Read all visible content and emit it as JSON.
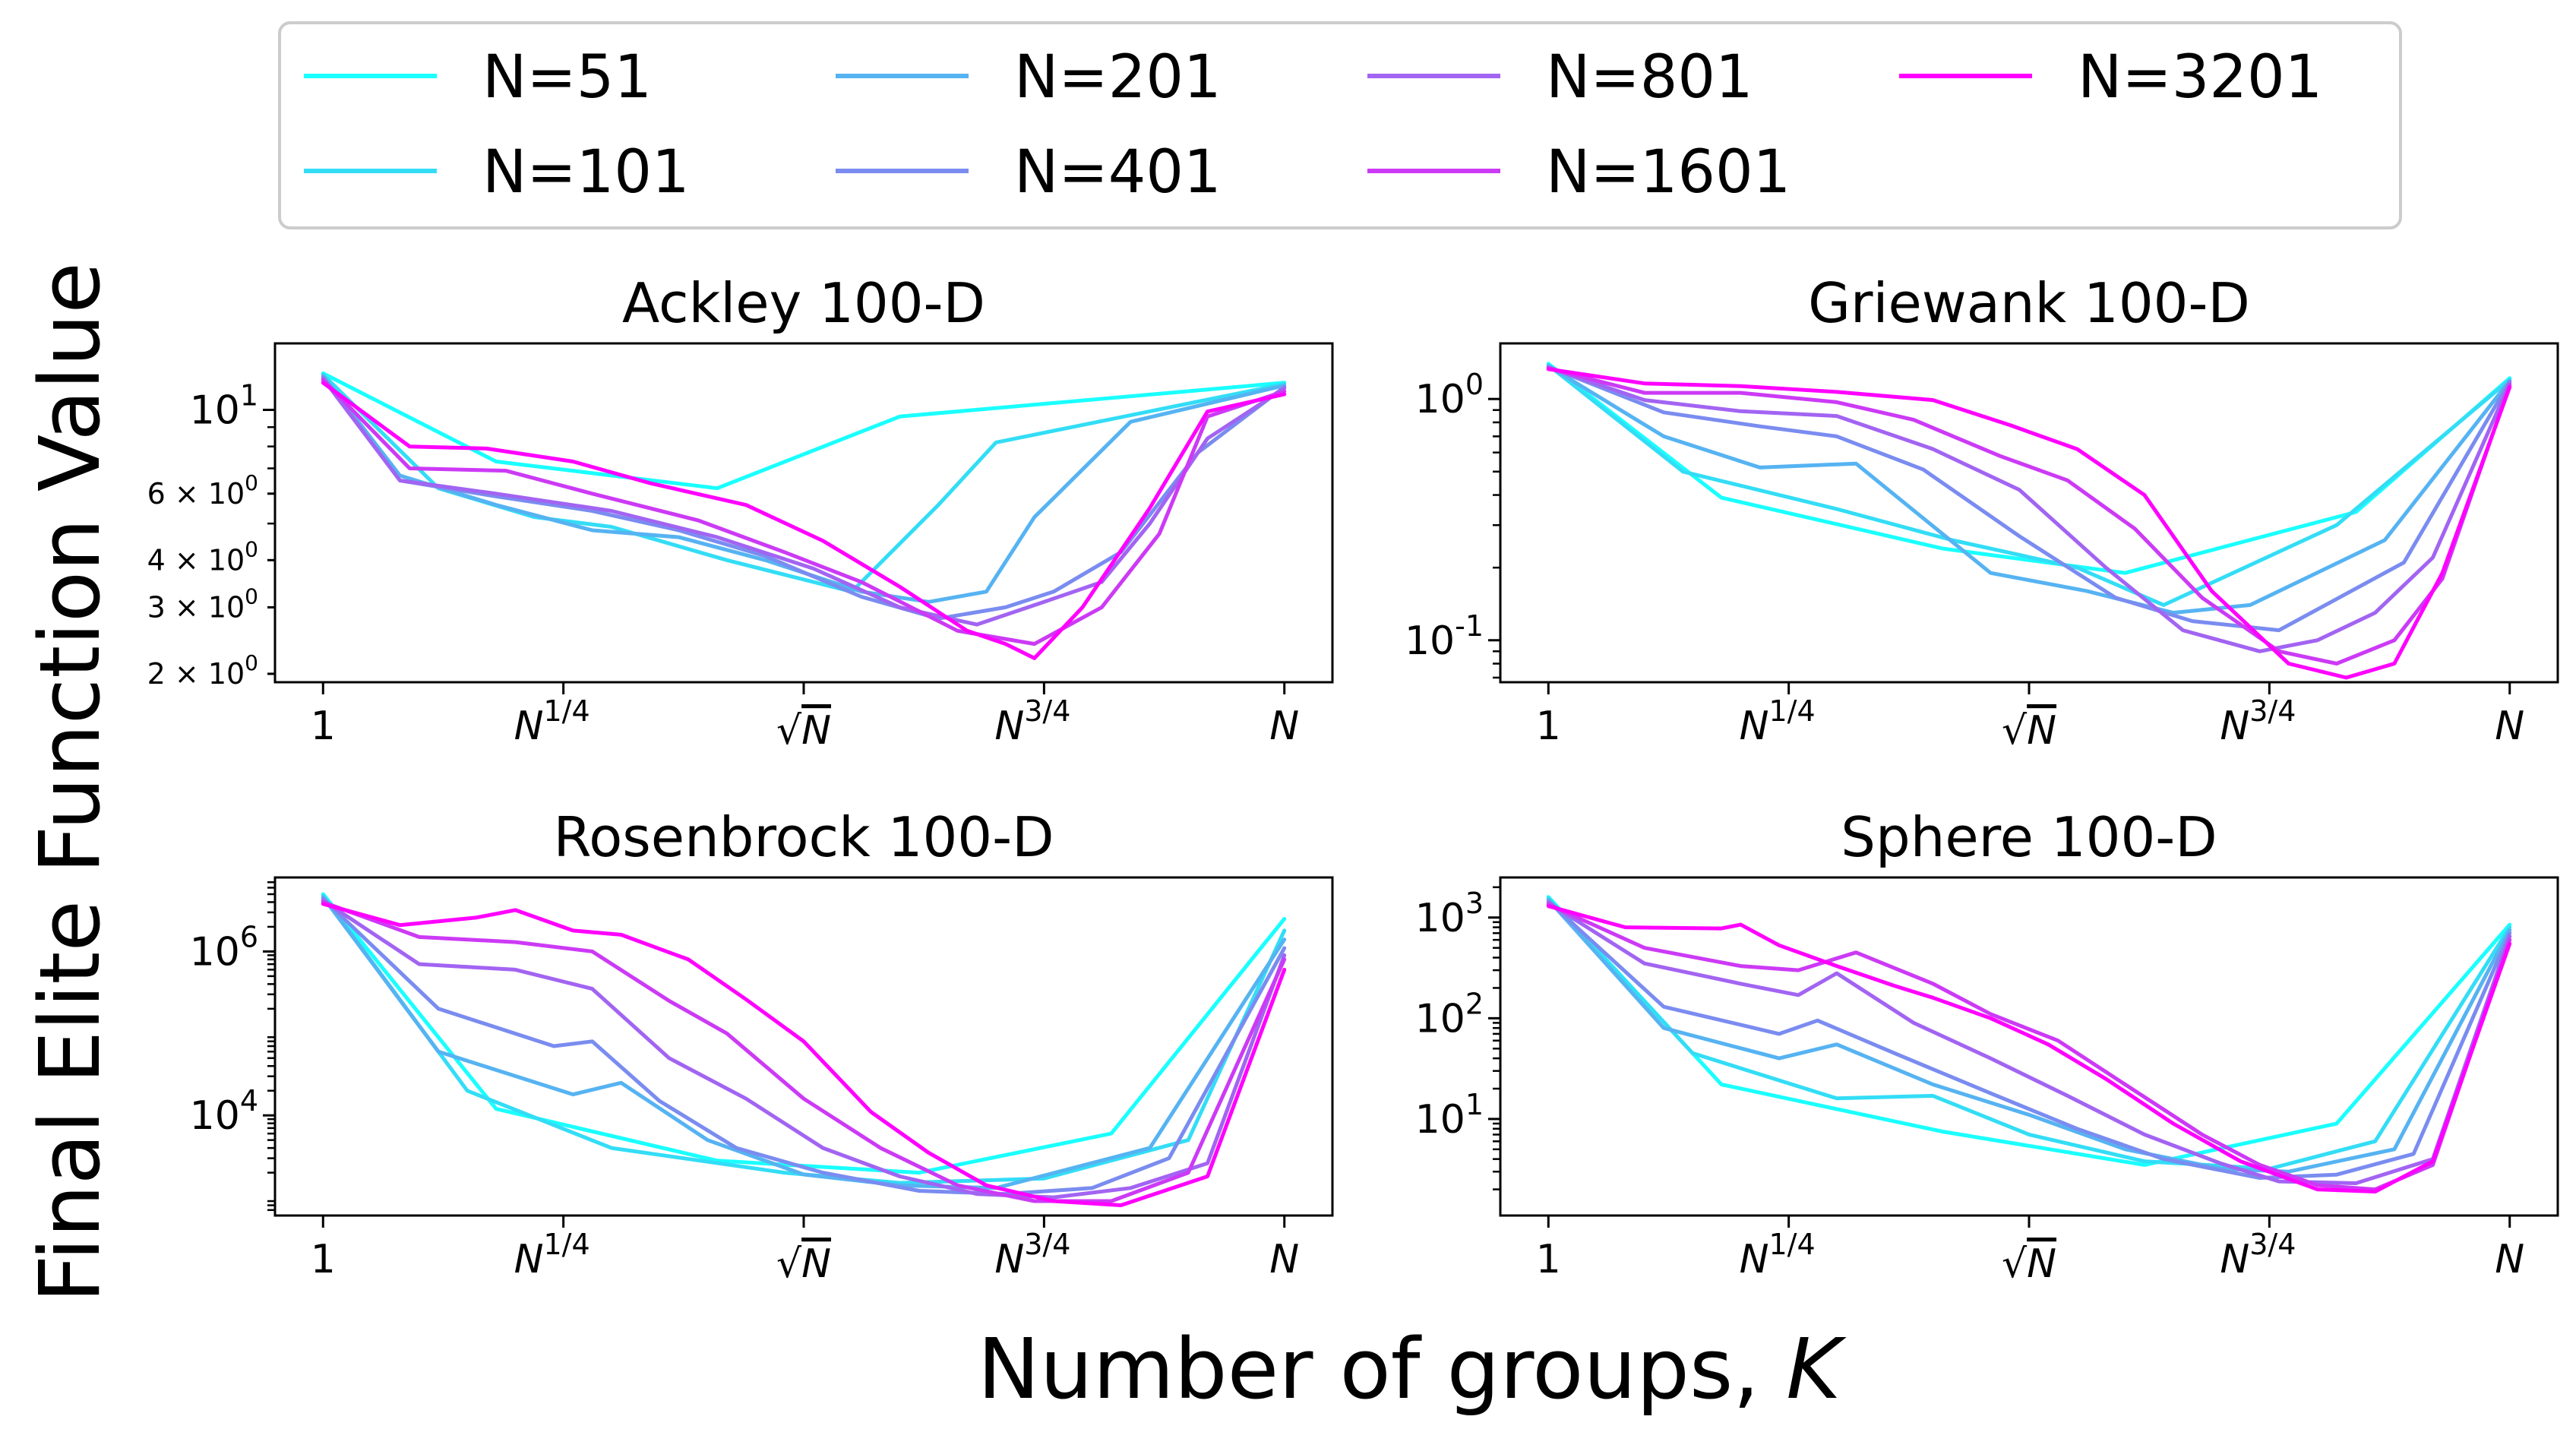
{
  "figure": {
    "ylabel": "Final Elite Function Value",
    "xlabel_prefix": "Number of groups, ",
    "xlabel_var": "K",
    "legend": [
      {
        "name": "N=51",
        "color": "#1affff"
      },
      {
        "name": "N=101",
        "color": "#33ddf6"
      },
      {
        "name": "N=201",
        "color": "#56b3f2"
      },
      {
        "name": "N=401",
        "color": "#7a8cf0"
      },
      {
        "name": "N=801",
        "color": "#a264f2"
      },
      {
        "name": "N=1601",
        "color": "#cc3af5"
      },
      {
        "name": "N=3201",
        "color": "#ff00ff"
      }
    ]
  },
  "chart_data": [
    {
      "type": "line",
      "title": "Ackley 100-D",
      "yscale": "log",
      "ylim": [
        1.9,
        15
      ],
      "xlim": [
        -0.05,
        1.05
      ],
      "x_ticks": [
        {
          "x": 0,
          "label": "1"
        },
        {
          "x": 0.25,
          "label": "N^1/4"
        },
        {
          "x": 0.5,
          "label": "√N"
        },
        {
          "x": 0.75,
          "label": "N^3/4"
        },
        {
          "x": 1,
          "label": "N"
        }
      ],
      "y_ticks": [
        {
          "v": 10,
          "label": "10^1",
          "major": true
        },
        {
          "v": 6,
          "label": "6 × 10^0",
          "major": false
        },
        {
          "v": 4,
          "label": "4 × 10^0",
          "major": false
        },
        {
          "v": 3,
          "label": "3 × 10^0",
          "major": false
        },
        {
          "v": 2,
          "label": "2 × 10^0",
          "major": false
        }
      ],
      "minor_ticks": [
        2,
        3,
        4,
        5,
        6,
        7,
        8,
        9
      ],
      "series": [
        {
          "name": "N=51",
          "x": [
            0,
            0.18,
            0.41,
            0.6,
            1.0
          ],
          "y": [
            12.5,
            7.3,
            6.2,
            9.6,
            11.8
          ]
        },
        {
          "name": "N=101",
          "x": [
            0,
            0.12,
            0.22,
            0.3,
            0.42,
            0.55,
            0.64,
            0.7,
            1.0
          ],
          "y": [
            12.4,
            6.2,
            5.2,
            4.9,
            4.0,
            3.3,
            5.6,
            8.2,
            11.7
          ]
        },
        {
          "name": "N=201",
          "x": [
            0,
            0.08,
            0.18,
            0.28,
            0.37,
            0.46,
            0.56,
            0.63,
            0.69,
            0.74,
            0.84,
            1.0
          ],
          "y": [
            12.3,
            6.7,
            5.6,
            4.8,
            4.6,
            4.0,
            3.3,
            3.1,
            3.3,
            5.2,
            9.3,
            11.6
          ]
        },
        {
          "name": "N=401",
          "x": [
            0,
            0.08,
            0.18,
            0.28,
            0.37,
            0.46,
            0.56,
            0.64,
            0.71,
            0.76,
            0.83,
            0.91,
            1.0
          ],
          "y": [
            12.2,
            6.5,
            5.9,
            5.4,
            4.8,
            4.1,
            3.2,
            2.8,
            3.0,
            3.3,
            4.2,
            7.7,
            11.5
          ]
        },
        {
          "name": "N=801",
          "x": [
            0,
            0.08,
            0.18,
            0.3,
            0.41,
            0.51,
            0.6,
            0.68,
            0.75,
            0.81,
            0.86,
            0.92,
            1.0
          ],
          "y": [
            12.1,
            6.5,
            6.0,
            5.4,
            4.6,
            3.8,
            3.0,
            2.7,
            3.1,
            3.5,
            5.0,
            8.4,
            11.4
          ]
        },
        {
          "name": "N=1601",
          "x": [
            0,
            0.09,
            0.19,
            0.28,
            0.39,
            0.48,
            0.56,
            0.66,
            0.74,
            0.81,
            0.87,
            0.92,
            1.0
          ],
          "y": [
            12.0,
            7.0,
            6.9,
            6.0,
            5.1,
            4.2,
            3.5,
            2.6,
            2.4,
            3.0,
            4.7,
            9.6,
            11.2
          ]
        },
        {
          "name": "N=3201",
          "x": [
            0,
            0.09,
            0.17,
            0.26,
            0.34,
            0.44,
            0.52,
            0.6,
            0.67,
            0.71,
            0.74,
            0.79,
            0.86,
            0.92,
            1.0
          ],
          "y": [
            11.8,
            8.0,
            7.9,
            7.3,
            6.4,
            5.6,
            4.5,
            3.4,
            2.6,
            2.4,
            2.2,
            3.0,
            5.5,
            9.9,
            11.0
          ]
        }
      ]
    },
    {
      "type": "line",
      "title": "Griewank 100-D",
      "yscale": "log",
      "ylim": [
        0.067,
        1.7
      ],
      "xlim": [
        -0.05,
        1.05
      ],
      "x_ticks": [
        {
          "x": 0,
          "label": "1"
        },
        {
          "x": 0.25,
          "label": "N^1/4"
        },
        {
          "x": 0.5,
          "label": "√N"
        },
        {
          "x": 0.75,
          "label": "N^3/4"
        },
        {
          "x": 1,
          "label": "N"
        }
      ],
      "y_ticks": [
        {
          "v": 1,
          "label": "10^0",
          "major": true
        },
        {
          "v": 0.1,
          "label": "10^-1",
          "major": true
        }
      ],
      "minor_ticks": [
        0.07,
        0.08,
        0.09,
        0.2,
        0.3,
        0.4,
        0.5,
        0.6,
        0.7,
        0.8,
        0.9
      ],
      "series": [
        {
          "name": "N=51",
          "x": [
            0,
            0.18,
            0.41,
            0.6,
            0.84,
            1.0
          ],
          "y": [
            1.4,
            0.39,
            0.24,
            0.19,
            0.34,
            1.22
          ]
        },
        {
          "name": "N=101",
          "x": [
            0,
            0.14,
            0.3,
            0.42,
            0.55,
            0.64,
            0.82,
            1.0
          ],
          "y": [
            1.38,
            0.5,
            0.35,
            0.26,
            0.2,
            0.14,
            0.3,
            1.2
          ]
        },
        {
          "name": "N=201",
          "x": [
            0,
            0.12,
            0.22,
            0.32,
            0.46,
            0.56,
            0.65,
            0.73,
            0.87,
            1.0
          ],
          "y": [
            1.37,
            0.7,
            0.52,
            0.54,
            0.19,
            0.16,
            0.13,
            0.14,
            0.26,
            1.19
          ]
        },
        {
          "name": "N=401",
          "x": [
            0,
            0.12,
            0.22,
            0.3,
            0.39,
            0.49,
            0.59,
            0.67,
            0.76,
            0.89,
            1.0
          ],
          "y": [
            1.36,
            0.88,
            0.77,
            0.7,
            0.51,
            0.27,
            0.15,
            0.12,
            0.11,
            0.21,
            1.18
          ]
        },
        {
          "name": "N=801",
          "x": [
            0,
            0.1,
            0.2,
            0.3,
            0.4,
            0.49,
            0.58,
            0.66,
            0.74,
            0.8,
            0.86,
            0.92,
            1.0
          ],
          "y": [
            1.35,
            0.99,
            0.89,
            0.85,
            0.62,
            0.42,
            0.2,
            0.11,
            0.09,
            0.1,
            0.13,
            0.22,
            1.16
          ]
        },
        {
          "name": "N=1601",
          "x": [
            0,
            0.1,
            0.2,
            0.3,
            0.38,
            0.47,
            0.54,
            0.61,
            0.68,
            0.76,
            0.82,
            0.88,
            0.93,
            1.0
          ],
          "y": [
            1.34,
            1.06,
            1.06,
            0.97,
            0.82,
            0.58,
            0.46,
            0.29,
            0.15,
            0.09,
            0.08,
            0.1,
            0.18,
            1.14
          ]
        },
        {
          "name": "N=3201",
          "x": [
            0,
            0.1,
            0.2,
            0.3,
            0.4,
            0.48,
            0.55,
            0.62,
            0.69,
            0.77,
            0.83,
            0.88,
            0.93,
            1.0
          ],
          "y": [
            1.33,
            1.16,
            1.13,
            1.07,
            0.99,
            0.78,
            0.62,
            0.4,
            0.16,
            0.08,
            0.07,
            0.08,
            0.19,
            1.12
          ]
        }
      ]
    },
    {
      "type": "line",
      "title": "Rosenbrock 100-D",
      "yscale": "log",
      "ylim": [
        600,
        8000000
      ],
      "xlim": [
        -0.05,
        1.05
      ],
      "x_ticks": [
        {
          "x": 0,
          "label": "1"
        },
        {
          "x": 0.25,
          "label": "N^1/4"
        },
        {
          "x": 0.5,
          "label": "√N"
        },
        {
          "x": 0.75,
          "label": "N^3/4"
        },
        {
          "x": 1,
          "label": "N"
        }
      ],
      "y_ticks": [
        {
          "v": 1000000,
          "label": "10^6",
          "major": true
        },
        {
          "v": 10000,
          "label": "10^4",
          "major": true
        }
      ],
      "minor_ticks": [
        700,
        800,
        900,
        2000,
        3000,
        4000,
        5000,
        6000,
        7000,
        8000,
        9000,
        20000,
        30000,
        40000,
        50000,
        60000,
        70000,
        80000,
        90000,
        200000,
        300000,
        400000,
        500000,
        600000,
        700000,
        800000,
        900000,
        2000000,
        3000000,
        4000000,
        5000000,
        6000000,
        7000000
      ],
      "series": [
        {
          "name": "N=51",
          "x": [
            0,
            0.18,
            0.41,
            0.62,
            0.82,
            1.0
          ],
          "y": [
            5000000,
            12000,
            2800,
            2000,
            6000,
            2500000
          ]
        },
        {
          "name": "N=101",
          "x": [
            0,
            0.15,
            0.3,
            0.48,
            0.6,
            0.75,
            0.9,
            1.0
          ],
          "y": [
            4800000,
            20000,
            4000,
            2000,
            1500,
            1700,
            5000,
            1800000
          ]
        },
        {
          "name": "N=201",
          "x": [
            0,
            0.12,
            0.26,
            0.31,
            0.4,
            0.5,
            0.6,
            0.7,
            0.86,
            1.0
          ],
          "y": [
            4600000,
            60000,
            18000,
            25000,
            5000,
            1900,
            1400,
            1300,
            4000,
            1400000
          ]
        },
        {
          "name": "N=401",
          "x": [
            0,
            0.12,
            0.24,
            0.28,
            0.35,
            0.43,
            0.52,
            0.62,
            0.71,
            0.8,
            0.88,
            1.0
          ],
          "y": [
            4400000,
            200000,
            70000,
            80000,
            15000,
            4000,
            2000,
            1200,
            1100,
            1300,
            3000,
            1100000
          ]
        },
        {
          "name": "N=801",
          "x": [
            0,
            0.1,
            0.2,
            0.28,
            0.36,
            0.44,
            0.52,
            0.6,
            0.68,
            0.76,
            0.84,
            0.92,
            1.0
          ],
          "y": [
            4200000,
            700000,
            600000,
            350000,
            50000,
            16000,
            4000,
            1800,
            1100,
            1000,
            1300,
            2600,
            900000
          ]
        },
        {
          "name": "N=1601",
          "x": [
            0,
            0.1,
            0.2,
            0.28,
            0.36,
            0.42,
            0.5,
            0.58,
            0.66,
            0.74,
            0.82,
            0.9,
            1.0
          ],
          "y": [
            4000000,
            1500000,
            1300000,
            1000000,
            250000,
            100000,
            16000,
            4000,
            1400,
            900,
            900,
            2000,
            800000
          ]
        },
        {
          "name": "N=3201",
          "x": [
            0,
            0.08,
            0.16,
            0.2,
            0.26,
            0.31,
            0.38,
            0.44,
            0.5,
            0.57,
            0.63,
            0.69,
            0.76,
            0.83,
            0.92,
            1.0
          ],
          "y": [
            3800000,
            2100000,
            2600000,
            3200000,
            1800000,
            1600000,
            800000,
            260000,
            80000,
            11000,
            3500,
            1400,
            900,
            800,
            1800,
            600000
          ]
        }
      ]
    },
    {
      "type": "line",
      "title": "Sphere 100-D",
      "yscale": "log",
      "ylim": [
        1.1,
        2500
      ],
      "xlim": [
        -0.05,
        1.05
      ],
      "x_ticks": [
        {
          "x": 0,
          "label": "1"
        },
        {
          "x": 0.25,
          "label": "N^1/4"
        },
        {
          "x": 0.5,
          "label": "√N"
        },
        {
          "x": 0.75,
          "label": "N^3/4"
        },
        {
          "x": 1,
          "label": "N"
        }
      ],
      "y_ticks": [
        {
          "v": 1000,
          "label": "10^3",
          "major": true
        },
        {
          "v": 100,
          "label": "10^2",
          "major": true
        },
        {
          "v": 10,
          "label": "10^1",
          "major": true
        }
      ],
      "minor_ticks": [
        2,
        3,
        4,
        5,
        6,
        7,
        8,
        9,
        20,
        30,
        40,
        50,
        60,
        70,
        80,
        90,
        200,
        300,
        400,
        500,
        600,
        700,
        800,
        900,
        2000
      ],
      "series": [
        {
          "name": "N=51",
          "x": [
            0,
            0.18,
            0.41,
            0.62,
            0.82,
            1.0
          ],
          "y": [
            1600,
            22,
            7.5,
            3.5,
            9,
            850
          ]
        },
        {
          "name": "N=101",
          "x": [
            0,
            0.15,
            0.3,
            0.4,
            0.5,
            0.62,
            0.75,
            0.86,
            1.0
          ],
          "y": [
            1550,
            45,
            16,
            17,
            7,
            3.8,
            3.2,
            6,
            800
          ]
        },
        {
          "name": "N=201",
          "x": [
            0,
            0.12,
            0.24,
            0.3,
            0.4,
            0.5,
            0.6,
            0.7,
            0.77,
            0.88,
            1.0
          ],
          "y": [
            1500,
            80,
            40,
            55,
            22,
            11,
            5,
            3.2,
            3,
            5,
            750
          ]
        },
        {
          "name": "N=401",
          "x": [
            0,
            0.12,
            0.24,
            0.28,
            0.36,
            0.46,
            0.55,
            0.64,
            0.74,
            0.82,
            0.9,
            1.0
          ],
          "y": [
            1450,
            130,
            70,
            95,
            45,
            18,
            8,
            4,
            2.6,
            2.8,
            4.5,
            700
          ]
        },
        {
          "name": "N=801",
          "x": [
            0,
            0.1,
            0.2,
            0.26,
            0.3,
            0.38,
            0.46,
            0.54,
            0.62,
            0.7,
            0.76,
            0.84,
            0.92,
            1.0
          ],
          "y": [
            1400,
            350,
            220,
            170,
            280,
            90,
            40,
            17,
            7,
            3.6,
            2.4,
            2.3,
            4,
            650
          ]
        },
        {
          "name": "N=1601",
          "x": [
            0,
            0.1,
            0.2,
            0.26,
            0.32,
            0.4,
            0.46,
            0.53,
            0.6,
            0.68,
            0.74,
            0.8,
            0.86,
            0.92,
            1.0
          ],
          "y": [
            1350,
            500,
            330,
            300,
            450,
            220,
            110,
            60,
            22,
            7,
            3.5,
            2.2,
            2.0,
            3.5,
            600
          ]
        },
        {
          "name": "N=3201",
          "x": [
            0,
            0.08,
            0.18,
            0.2,
            0.24,
            0.3,
            0.36,
            0.4,
            0.46,
            0.52,
            0.58,
            0.65,
            0.72,
            0.8,
            0.86,
            0.92,
            1.0
          ],
          "y": [
            1300,
            800,
            780,
            850,
            530,
            330,
            210,
            160,
            100,
            55,
            25,
            9,
            3.8,
            2.0,
            1.9,
            3.8,
            550
          ]
        }
      ]
    }
  ]
}
